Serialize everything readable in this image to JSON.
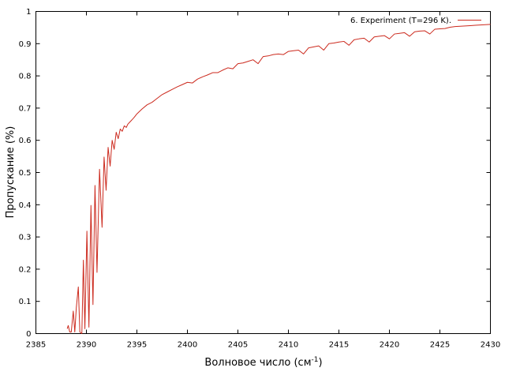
{
  "chart_data": {
    "type": "line",
    "title": "",
    "xlabel": "Волновое число (см",
    "xlabel_sup": "-1",
    "xlabel_suffix": ")",
    "ylabel": "Пропускание (%)",
    "xlim": [
      2385,
      2430
    ],
    "ylim": [
      0,
      1
    ],
    "xticks": [
      2385,
      2390,
      2395,
      2400,
      2405,
      2410,
      2415,
      2420,
      2425,
      2430
    ],
    "yticks": [
      0,
      0.1,
      0.2,
      0.3,
      0.4,
      0.5,
      0.6,
      0.7,
      0.8,
      0.9,
      1
    ],
    "xtick_labels": [
      "2385",
      "2390",
      "2395",
      "2400",
      "2405",
      "2410",
      "2415",
      "2420",
      "2425",
      "2430"
    ],
    "ytick_labels": [
      "0",
      "0.1",
      "0.2",
      "0.3",
      "0.4",
      "0.5",
      "0.6",
      "0.7",
      "0.8",
      "0.9",
      "1"
    ],
    "grid": false,
    "legend_position": "top-right",
    "series": [
      {
        "name": "6. Experiment (T=296 K).",
        "color": "#cc2a1e",
        "x": [
          2388.1,
          2388.2,
          2388.35,
          2388.5,
          2388.7,
          2388.85,
          2389.0,
          2389.2,
          2389.35,
          2389.55,
          2389.7,
          2389.85,
          2390.05,
          2390.25,
          2390.45,
          2390.65,
          2390.85,
          2391.05,
          2391.3,
          2391.55,
          2391.75,
          2391.95,
          2392.15,
          2392.35,
          2392.55,
          2392.75,
          2392.95,
          2393.15,
          2393.35,
          2393.55,
          2393.75,
          2393.95,
          2394.1,
          2394.25,
          2394.4,
          2394.55,
          2394.75,
          2395.0,
          2395.5,
          2396.0,
          2396.5,
          2397.0,
          2397.5,
          2398.0,
          2398.5,
          2399.0,
          2399.5,
          2400.0,
          2400.5,
          2401.0,
          2401.5,
          2402.0,
          2402.5,
          2403.0,
          2403.5,
          2404.0,
          2404.5,
          2405.0,
          2405.5,
          2406.0,
          2406.5,
          2407.0,
          2407.5,
          2408.0,
          2408.5,
          2409.0,
          2409.5,
          2410.0,
          2410.5,
          2411.0,
          2411.5,
          2412.0,
          2412.5,
          2413.0,
          2413.5,
          2414.0,
          2414.5,
          2415.0,
          2415.5,
          2416.0,
          2416.5,
          2417.0,
          2417.5,
          2418.0,
          2418.5,
          2419.0,
          2419.5,
          2420.0,
          2420.5,
          2421.0,
          2421.5,
          2422.0,
          2422.5,
          2423.0,
          2423.5,
          2424.0,
          2424.5,
          2425.0,
          2425.5,
          2426.0,
          2426.5,
          2427.0,
          2427.5,
          2428.0,
          2428.5,
          2429.0,
          2429.5,
          2430.0
        ],
        "y": [
          0.015,
          0.025,
          0.005,
          0.005,
          0.07,
          0.005,
          0.08,
          0.145,
          0.005,
          0.0,
          0.228,
          0.015,
          0.318,
          0.02,
          0.398,
          0.09,
          0.46,
          0.19,
          0.51,
          0.33,
          0.548,
          0.445,
          0.578,
          0.52,
          0.6,
          0.572,
          0.625,
          0.605,
          0.635,
          0.628,
          0.645,
          0.64,
          0.65,
          0.655,
          0.66,
          0.665,
          0.672,
          0.682,
          0.697,
          0.71,
          0.718,
          0.73,
          0.742,
          0.75,
          0.758,
          0.766,
          0.773,
          0.78,
          0.778,
          0.79,
          0.797,
          0.803,
          0.81,
          0.81,
          0.818,
          0.825,
          0.822,
          0.838,
          0.84,
          0.845,
          0.85,
          0.838,
          0.86,
          0.862,
          0.866,
          0.868,
          0.866,
          0.876,
          0.878,
          0.88,
          0.868,
          0.887,
          0.89,
          0.893,
          0.88,
          0.9,
          0.902,
          0.905,
          0.907,
          0.895,
          0.912,
          0.915,
          0.917,
          0.905,
          0.921,
          0.923,
          0.925,
          0.915,
          0.93,
          0.932,
          0.934,
          0.923,
          0.937,
          0.939,
          0.94,
          0.93,
          0.945,
          0.946,
          0.947,
          0.951,
          0.953,
          0.954,
          0.955,
          0.956,
          0.957,
          0.958,
          0.959,
          0.96
        ]
      }
    ]
  }
}
